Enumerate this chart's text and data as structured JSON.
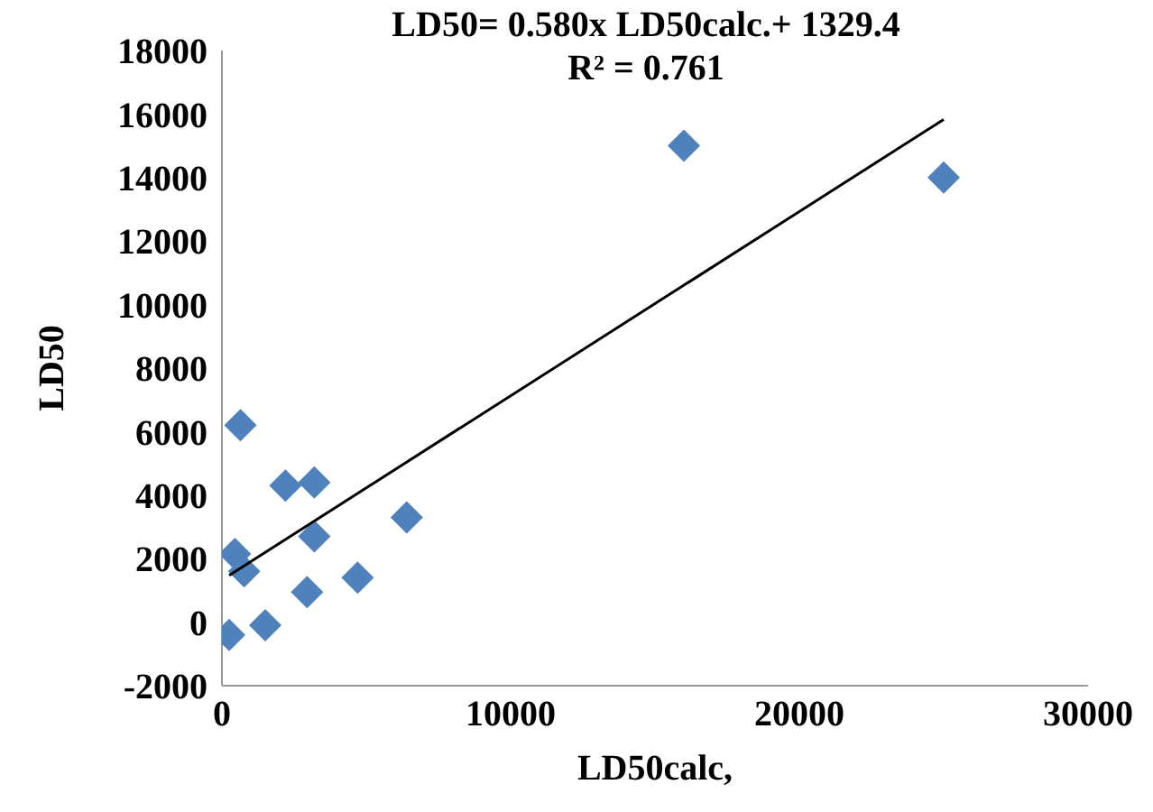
{
  "chart_data": {
    "type": "scatter",
    "xlabel": "LD50calc,",
    "ylabel": "LD50",
    "annotations": [
      "LD50= 0.580x LD50calc.+ 1329.4",
      "R² = 0.761"
    ],
    "x": [
      640,
      2200,
      3200,
      3200,
      450,
      770,
      2950,
      4700,
      6400,
      250,
      1500,
      16000,
      25000
    ],
    "series": [
      {
        "color": "#4f81bd",
        "marker": "diamond",
        "values": [
          6200,
          4300,
          4400,
          2700,
          2150,
          1600,
          950,
          1400,
          3300,
          -400,
          -100,
          15000,
          14000
        ]
      },
      {
        "type": "line",
        "color": "#000000",
        "x": [
          250,
          25000
        ],
        "values": [
          1474,
          15829
        ]
      }
    ],
    "xlim": [
      0,
      30000
    ],
    "xticks": [
      0,
      10000,
      20000,
      30000
    ],
    "ylim": [
      -2000,
      18000
    ],
    "yticks": [
      -2000,
      0,
      2000,
      4000,
      6000,
      8000,
      10000,
      12000,
      14000,
      16000,
      18000
    ],
    "grid": false,
    "legend": false
  }
}
